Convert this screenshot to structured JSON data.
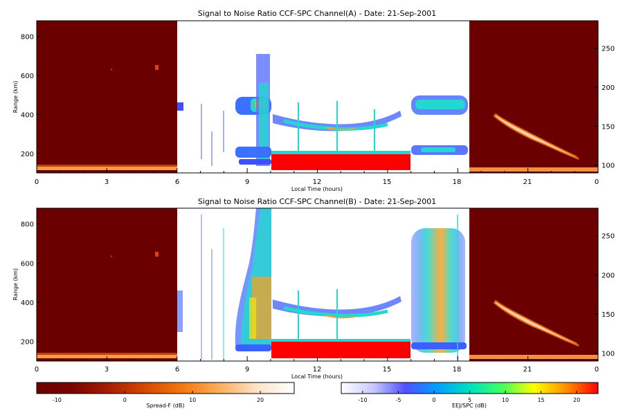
{
  "chart_data": [
    {
      "type": "heatmap",
      "title": "Signal to Noise Ratio CCF-SPC Channel(A) - Date: 21-Sep-2001",
      "xlabel": "Local Time (hours)",
      "ylabel": "Range (km)",
      "x_ticks": [
        "0",
        "3",
        "6",
        "9",
        "12",
        "15",
        "18",
        "21",
        "0"
      ],
      "y_ticks_left": [
        200,
        400,
        600,
        800
      ],
      "y_ticks_right": [
        100,
        150,
        200,
        250
      ],
      "xlim": [
        0,
        24
      ],
      "ylim_left": [
        100,
        880
      ],
      "ylim_right": [
        90,
        285
      ],
      "panels": [
        {
          "x_range": [
            0,
            6
          ],
          "colorbar": "Spread-F",
          "content": "night"
        },
        {
          "x_range": [
            6,
            10
          ],
          "colorbar": "EEJ/SPC",
          "content": "dawn"
        },
        {
          "x_range": [
            10,
            16
          ],
          "colorbar": "EEJ/SPC",
          "content": "day"
        },
        {
          "x_range": [
            16,
            18.5
          ],
          "colorbar": "EEJ/SPC",
          "content": "dusk"
        },
        {
          "x_range": [
            18.5,
            24
          ],
          "colorbar": "Spread-F",
          "content": "evening"
        }
      ]
    },
    {
      "type": "heatmap",
      "title": "Signal to Noise Ratio CCF-SPC Channel(B) - Date: 21-Sep-2001",
      "xlabel": "Local Time (hours)",
      "ylabel": "Range (km)",
      "x_ticks": [
        "0",
        "3",
        "6",
        "9",
        "12",
        "15",
        "18",
        "21",
        "0"
      ],
      "y_ticks_left": [
        200,
        400,
        600,
        800
      ],
      "y_ticks_right": [
        100,
        150,
        200,
        250
      ],
      "xlim": [
        0,
        24
      ],
      "ylim_left": [
        100,
        880
      ],
      "ylim_right": [
        90,
        285
      ],
      "panels": [
        {
          "x_range": [
            0,
            6
          ],
          "colorbar": "Spread-F",
          "content": "night"
        },
        {
          "x_range": [
            6,
            10
          ],
          "colorbar": "EEJ/SPC",
          "content": "dawnB"
        },
        {
          "x_range": [
            10,
            16
          ],
          "colorbar": "EEJ/SPC",
          "content": "day"
        },
        {
          "x_range": [
            16,
            18.5
          ],
          "colorbar": "EEJ/SPC",
          "content": "duskB"
        },
        {
          "x_range": [
            18.5,
            24
          ],
          "colorbar": "Spread-F",
          "content": "evening"
        }
      ]
    }
  ],
  "colorbars": [
    {
      "label": "Spread-F (dB)",
      "range": [
        -13,
        25
      ],
      "ticks": [
        "-10",
        "0",
        "10",
        "20"
      ],
      "colors": [
        "#6b0000",
        "#7a0500",
        "#a82000",
        "#d84a00",
        "#f47a12",
        "#fbb060",
        "#fde4c8",
        "#ffffff"
      ]
    },
    {
      "label": "EEJ/SPC (dB)",
      "range": [
        -13,
        23
      ],
      "ticks": [
        "-10",
        "-5",
        "0",
        "5",
        "10",
        "15",
        "20"
      ],
      "colors": [
        "#ffffff",
        "#c8c8ff",
        "#5050ff",
        "#00a0ff",
        "#00e0c0",
        "#40ff60",
        "#ffff00",
        "#ff9000",
        "#ff0000"
      ]
    }
  ],
  "colors": {
    "dark_red": "#6b0000",
    "red": "#ff0000",
    "blue": "#3c50ff",
    "cyan": "#22d8d0",
    "yellow": "#fff000",
    "orange": "#f8a020"
  }
}
